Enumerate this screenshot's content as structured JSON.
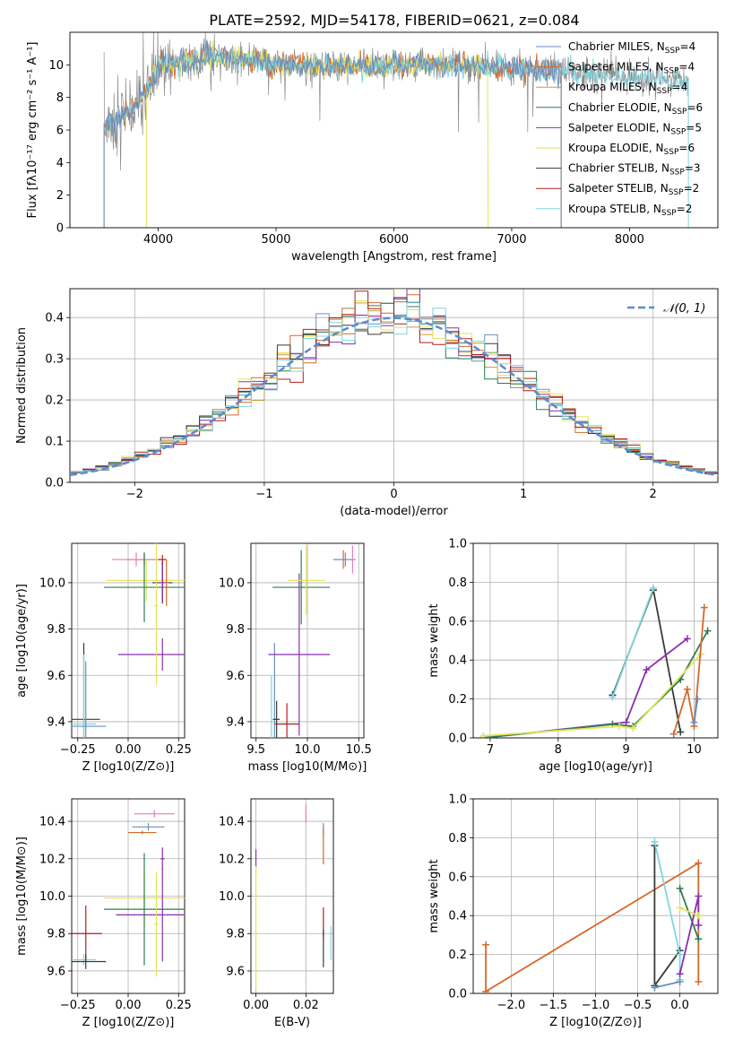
{
  "title": "PLATE=2592, MJD=54178, FIBERID=0621, z=0.084",
  "colors": {
    "Chabrier MILES": "#6a8fbf",
    "Salpeter MILES": "#d46a2a",
    "Kroupa MILES": "#c89a3a",
    "Chabrier ELODIE": "#2f7d4f",
    "Salpeter ELODIE": "#8a2fb0",
    "Kroupa ELODIE": "#e3e35a",
    "Chabrier STELIB": "#3a3a3a",
    "Salpeter STELIB": "#b01e1e",
    "Kroupa STELIB": "#7fd6e0",
    "pink": "#e57fb8",
    "gauss": "#5b8ad6",
    "grid": "#b0b0b0"
  },
  "chart_data": [
    {
      "id": "spectrum",
      "type": "line",
      "title": "PLATE=2592, MJD=54178, FIBERID=0621, z=0.084",
      "xlabel": "wavelength [Angstrom, rest frame]",
      "ylabel": "Flux [fλ10⁻¹⁷ erg cm⁻² s⁻¹ A⁻¹]",
      "xlim": [
        3250,
        8750
      ],
      "ylim": [
        0,
        12
      ],
      "xticks": [
        4000,
        5000,
        6000,
        7000,
        8000
      ],
      "yticks": [
        0,
        2,
        4,
        6,
        8,
        10
      ],
      "grid": false,
      "legend_position": "right",
      "legend": [
        {
          "label": "Chabrier MILES, N",
          "sub": "SSP",
          "tail": "=4",
          "color": "#6a8fbf"
        },
        {
          "label": "Salpeter MILES, N",
          "sub": "SSP",
          "tail": "=4",
          "color": "#d46a2a"
        },
        {
          "label": "Kroupa MILES, N",
          "sub": "SSP",
          "tail": "=4",
          "color": "#c89a3a"
        },
        {
          "label": "Chabrier ELODIE, N",
          "sub": "SSP",
          "tail": "=6",
          "color": "#2f7d4f"
        },
        {
          "label": "Salpeter ELODIE, N",
          "sub": "SSP",
          "tail": "=5",
          "color": "#8a2fb0"
        },
        {
          "label": "Kroupa ELODIE, N",
          "sub": "SSP",
          "tail": "=6",
          "color": "#e3e35a"
        },
        {
          "label": "Chabrier STELIB, N",
          "sub": "SSP",
          "tail": "=3",
          "color": "#3a3a3a"
        },
        {
          "label": "Salpeter STELIB, N",
          "sub": "SSP",
          "tail": "=2",
          "color": "#b01e1e"
        },
        {
          "label": "Kroupa STELIB, N",
          "sub": "SSP",
          "tail": "=2",
          "color": "#7fd6e0"
        }
      ],
      "continuum": {
        "x": [
          3500,
          3600,
          3700,
          3800,
          3900,
          4000,
          4100,
          4300,
          4500,
          5000,
          5500,
          6000,
          6500,
          7000,
          7500,
          8000,
          8500
        ],
        "y": [
          5.8,
          6.5,
          6.8,
          7.5,
          8.3,
          9.8,
          10.1,
          10.2,
          10.5,
          10.1,
          9.9,
          10.0,
          10.0,
          9.8,
          9.6,
          9.2,
          9.0
        ]
      },
      "models": [
        {
          "name": "Salpeter MILES",
          "color": "#d46a2a",
          "xmin": 3540,
          "xmax": 7420
        },
        {
          "name": "Kroupa ELODIE",
          "color": "#e3e35a",
          "xmin": 3900,
          "xmax": 6800
        },
        {
          "name": "Kroupa STELIB",
          "color": "#7fd6e0",
          "xmin": 3540,
          "xmax": 8500
        },
        {
          "name": "Chabrier MILES",
          "color": "#6a8fbf",
          "xmin": 3540,
          "xmax": 7420
        }
      ]
    },
    {
      "id": "residuals",
      "type": "bar",
      "title": "",
      "xlabel": "(data-model)/error",
      "ylabel": "Normed distribution",
      "xlim": [
        -2.5,
        2.5
      ],
      "ylim": [
        0,
        0.47
      ],
      "xticks": [
        -2,
        -1,
        0,
        1,
        2
      ],
      "yticks": [
        0.0,
        0.1,
        0.2,
        0.3,
        0.4
      ],
      "grid": true,
      "legend": [
        {
          "label": "𝒩(0, 1)",
          "color": "#5b8ad6"
        }
      ],
      "bin_width": 0.1,
      "gaussian": {
        "mu": 0,
        "sigma": 1
      }
    },
    {
      "id": "age-vs-Z",
      "type": "scatter",
      "xlabel": "Z [log10(Z/Z⊙)]",
      "ylabel": "age  [log10(age/yr)]",
      "xlim": [
        -0.28,
        0.28
      ],
      "ylim": [
        9.33,
        10.17
      ],
      "xticks": [
        -0.25,
        0.0,
        0.25
      ],
      "yticks": [
        9.4,
        9.6,
        9.8,
        10.0
      ],
      "grid": true,
      "points": [
        {
          "x": -0.22,
          "y": 9.41,
          "xerr": 0.08,
          "yerr": 0.33,
          "color": "#3a3a3a"
        },
        {
          "x": -0.22,
          "y": 9.39,
          "xerr": 0.06,
          "yerr": 0.3,
          "color": "#7fd6e0"
        },
        {
          "x": -0.21,
          "y": 9.38,
          "xerr": 0.1,
          "yerr": 0.28,
          "color": "#6a8fbf"
        },
        {
          "x": 0.08,
          "y": 10.1,
          "xerr": 0.1,
          "yerr": 0.02,
          "color": "#6a8fbf"
        },
        {
          "x": 0.08,
          "y": 10.1,
          "xerr": 0.08,
          "yerr": 0.03,
          "color": "#d46a2a"
        },
        {
          "x": 0.04,
          "y": 10.1,
          "xerr": 0.12,
          "yerr": 0.03,
          "color": "#e57fb8"
        },
        {
          "x": 0.17,
          "y": 10.1,
          "xerr": 0.02,
          "yerr": 0.02,
          "color": "#b01e1e"
        },
        {
          "x": 0.09,
          "y": 10.01,
          "xerr": 0.2,
          "yerr": 0.09,
          "color": "#e3e35a"
        },
        {
          "x": 0.08,
          "y": 9.98,
          "xerr": 0.2,
          "yerr": 0.15,
          "color": "#2f7d4f"
        },
        {
          "x": 0.17,
          "y": 10.0,
          "xerr": 0.05,
          "yerr": 0.09,
          "color": "#3a3a3a"
        },
        {
          "x": 0.17,
          "y": 9.69,
          "xerr": 0.22,
          "yerr": 0.07,
          "color": "#8a2fb0"
        },
        {
          "x": 0.17,
          "y": 10.0,
          "xerr": 0.02,
          "yerr": 0.08,
          "color": "#8a2fb0"
        },
        {
          "x": 0.14,
          "y": 9.9,
          "xerr": 0.01,
          "yerr": 0.34,
          "color": "#e3e35a"
        },
        {
          "x": 0.19,
          "y": 10.0,
          "xerr": 0.01,
          "yerr": 0.1,
          "color": "#d46a2a"
        }
      ]
    },
    {
      "id": "age-vs-mass",
      "type": "scatter",
      "xlabel": "mass [log10(M/M⊙)]",
      "ylabel": "",
      "xlim": [
        9.45,
        10.55
      ],
      "ylim": [
        9.33,
        10.17
      ],
      "xticks": [
        9.5,
        10.0,
        10.5
      ],
      "yticks": [
        9.4,
        9.6,
        9.8,
        10.0
      ],
      "grid": true,
      "points": [
        {
          "x": 9.68,
          "y": 9.41,
          "xerr": 0.02,
          "yerr": 0.33,
          "color": "#6a8fbf"
        },
        {
          "x": 9.65,
          "y": 9.4,
          "xerr": 0.02,
          "yerr": 0.2,
          "color": "#7fd6e0"
        },
        {
          "x": 9.7,
          "y": 9.41,
          "xerr": 0.03,
          "yerr": 0.08,
          "color": "#3a3a3a"
        },
        {
          "x": 9.8,
          "y": 9.39,
          "xerr": 0.12,
          "yerr": 0.09,
          "color": "#b01e1e"
        },
        {
          "x": 9.92,
          "y": 9.69,
          "xerr": 0.3,
          "yerr": 0.35,
          "color": "#8a2fb0"
        },
        {
          "x": 9.94,
          "y": 9.98,
          "xerr": 0.28,
          "yerr": 0.16,
          "color": "#2f7d4f"
        },
        {
          "x": 9.99,
          "y": 10.01,
          "xerr": 0.18,
          "yerr": 0.15,
          "color": "#e3e35a"
        },
        {
          "x": 10.35,
          "y": 10.1,
          "xerr": 0.1,
          "yerr": 0.04,
          "color": "#d46a2a"
        },
        {
          "x": 10.37,
          "y": 10.1,
          "xerr": 0.1,
          "yerr": 0.03,
          "color": "#6a8fbf"
        },
        {
          "x": 10.44,
          "y": 10.1,
          "xerr": 0.01,
          "yerr": 0.06,
          "color": "#e57fb8"
        }
      ]
    },
    {
      "id": "weight-vs-age",
      "type": "line",
      "xlabel": "age  [log10(age/yr)]",
      "ylabel": "mass weight",
      "xlim": [
        6.75,
        10.35
      ],
      "ylim": [
        0,
        1.0
      ],
      "xticks": [
        7,
        8,
        9,
        10
      ],
      "yticks": [
        0.0,
        0.2,
        0.4,
        0.6,
        0.8,
        1.0
      ],
      "grid": true,
      "series": [
        {
          "color": "#3a3a3a",
          "x": [
            8.8,
            9.4,
            9.8
          ],
          "y": [
            0.22,
            0.76,
            0.03
          ]
        },
        {
          "color": "#7fd6e0",
          "x": [
            8.8,
            9.4
          ],
          "y": [
            0.21,
            0.77
          ]
        },
        {
          "color": "#8a2fb0",
          "x": [
            6.9,
            9.0,
            9.3,
            9.9
          ],
          "y": [
            0.0,
            0.08,
            0.35,
            0.51
          ]
        },
        {
          "color": "#2f7d4f",
          "x": [
            6.9,
            8.8,
            9.1,
            9.8,
            10.2
          ],
          "y": [
            0.0,
            0.07,
            0.06,
            0.3,
            0.55
          ]
        },
        {
          "color": "#e3e35a",
          "x": [
            6.9,
            8.9,
            9.1,
            10.1
          ],
          "y": [
            0.01,
            0.06,
            0.05,
            0.43
          ]
        },
        {
          "color": "#d46a2a",
          "x": [
            9.7,
            9.9,
            10.0,
            10.15
          ],
          "y": [
            0.02,
            0.25,
            0.06,
            0.67
          ]
        },
        {
          "color": "#6a8fbf",
          "x": [
            10.0,
            10.05
          ],
          "y": [
            0.08,
            0.2
          ]
        }
      ]
    },
    {
      "id": "mass-vs-Z",
      "type": "scatter",
      "xlabel": "Z [log10(Z/Z⊙)]",
      "ylabel": "mass [log10(M/M⊙)]",
      "xlim": [
        -0.28,
        0.28
      ],
      "ylim": [
        9.48,
        10.52
      ],
      "xticks": [
        -0.25,
        0.0,
        0.25
      ],
      "yticks": [
        9.6,
        9.8,
        10.0,
        10.2,
        10.4
      ],
      "grid": true,
      "points": [
        {
          "x": 0.13,
          "y": 10.44,
          "xerr": 0.1,
          "yerr": 0.02,
          "color": "#e57fb8"
        },
        {
          "x": 0.1,
          "y": 10.37,
          "xerr": 0.08,
          "yerr": 0.02,
          "color": "#6a8fbf"
        },
        {
          "x": 0.07,
          "y": 10.34,
          "xerr": 0.07,
          "yerr": 0.01,
          "color": "#d46a2a"
        },
        {
          "x": 0.17,
          "y": 10.2,
          "xerr": 0.01,
          "yerr": 0.06,
          "color": "#8a2fb0"
        },
        {
          "x": 0.08,
          "y": 9.99,
          "xerr": 0.2,
          "yerr": 0.15,
          "color": "#e3e35a"
        },
        {
          "x": 0.08,
          "y": 9.93,
          "xerr": 0.2,
          "yerr": 0.3,
          "color": "#2f7d4f"
        },
        {
          "x": 0.17,
          "y": 9.9,
          "xerr": 0.23,
          "yerr": 0.25,
          "color": "#8a2fb0"
        },
        {
          "x": 0.14,
          "y": 9.85,
          "xerr": 0.01,
          "yerr": 0.28,
          "color": "#e3e35a"
        },
        {
          "x": -0.21,
          "y": 9.8,
          "xerr": 0.08,
          "yerr": 0.15,
          "color": "#b01e1e"
        },
        {
          "x": -0.22,
          "y": 9.66,
          "xerr": 0.06,
          "yerr": 0.03,
          "color": "#7fd6e0"
        },
        {
          "x": -0.21,
          "y": 9.65,
          "xerr": 0.1,
          "yerr": 0.04,
          "color": "#3a3a3a"
        }
      ]
    },
    {
      "id": "mass-vs-EBV",
      "type": "scatter",
      "xlabel": "E(B-V)",
      "ylabel": "",
      "xlim": [
        -0.002,
        0.031
      ],
      "ylim": [
        9.48,
        10.52
      ],
      "xticks": [
        0.0,
        0.02
      ],
      "yticks": [
        9.6,
        9.8,
        10.0,
        10.2,
        10.4
      ],
      "grid": true,
      "points": [
        {
          "x": 0.02,
          "y": 10.44,
          "xerr": 0.0,
          "yerr": 0.05,
          "color": "#e57fb8"
        },
        {
          "x": 0.027,
          "y": 10.35,
          "xerr": 0.0,
          "yerr": 0.04,
          "color": "#6a8fbf"
        },
        {
          "x": 0.027,
          "y": 10.27,
          "xerr": 0.0,
          "yerr": 0.1,
          "color": "#d46a2a"
        },
        {
          "x": 0.0,
          "y": 10.2,
          "xerr": 0.0,
          "yerr": 0.05,
          "color": "#8a2fb0"
        },
        {
          "x": 0.0,
          "y": 9.83,
          "xerr": 0.0,
          "yerr": 0.33,
          "color": "#e3e35a"
        },
        {
          "x": 0.027,
          "y": 9.86,
          "xerr": 0.0,
          "yerr": 0.08,
          "color": "#b01e1e"
        },
        {
          "x": 0.027,
          "y": 9.72,
          "xerr": 0.0,
          "yerr": 0.1,
          "color": "#3a3a3a"
        },
        {
          "x": 0.03,
          "y": 9.75,
          "xerr": 0.0,
          "yerr": 0.09,
          "color": "#7fd6e0"
        }
      ]
    },
    {
      "id": "weight-vs-Z",
      "type": "line",
      "xlabel": "Z [log10(Z/Z⊙)]",
      "ylabel": "mass weight",
      "xlim": [
        -2.45,
        0.45
      ],
      "ylim": [
        0,
        1.0
      ],
      "xticks": [
        -2.0,
        -1.5,
        -1.0,
        -0.5,
        0.0
      ],
      "yticks": [
        0.0,
        0.2,
        0.4,
        0.6,
        0.8,
        1.0
      ],
      "grid": true,
      "series": [
        {
          "color": "#d46a2a",
          "x": [
            -2.3,
            -2.3,
            0.22,
            0.22
          ],
          "y": [
            0.25,
            0.01,
            0.67,
            0.06
          ]
        },
        {
          "color": "#3a3a3a",
          "x": [
            -0.3,
            -0.3,
            0.0
          ],
          "y": [
            0.76,
            0.04,
            0.22
          ]
        },
        {
          "color": "#7fd6e0",
          "x": [
            -0.3,
            0.0,
            0.0
          ],
          "y": [
            0.78,
            0.2,
            0.07
          ]
        },
        {
          "color": "#2f7d4f",
          "x": [
            0.0,
            0.22
          ],
          "y": [
            0.54,
            0.28
          ]
        },
        {
          "color": "#8a2fb0",
          "x": [
            0.0,
            0.22,
            0.22
          ],
          "y": [
            0.1,
            0.5,
            0.35
          ]
        },
        {
          "color": "#e3e35a",
          "x": [
            0.0,
            0.22
          ],
          "y": [
            0.44,
            0.4
          ]
        },
        {
          "color": "#6a8fbf",
          "x": [
            -0.3,
            0.0
          ],
          "y": [
            0.03,
            0.06
          ]
        }
      ]
    }
  ]
}
